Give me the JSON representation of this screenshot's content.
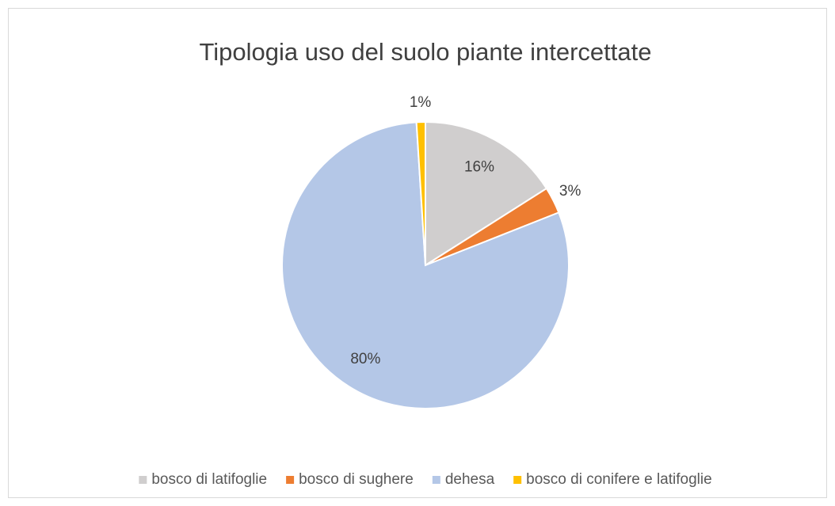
{
  "chart_data": {
    "type": "pie",
    "title": "Tipologia uso del suolo piante intercettate",
    "categories": [
      "bosco di latifoglie",
      "bosco di sughere",
      "dehesa",
      "bosco di conifere e latifoglie"
    ],
    "values": [
      16,
      3,
      80,
      1
    ],
    "value_labels": [
      "16%",
      "3%",
      "80%",
      "1%"
    ],
    "colors": [
      "#d0cece",
      "#ed7d31",
      "#b4c7e7",
      "#ffc000"
    ],
    "legend": "bottom"
  }
}
